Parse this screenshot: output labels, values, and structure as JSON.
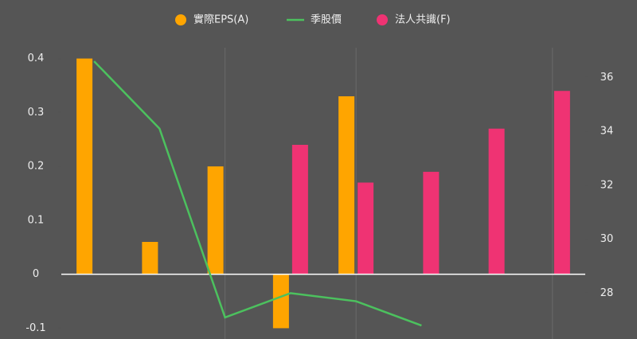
{
  "chart_data": {
    "type": "bar",
    "categories": [
      null,
      null,
      null,
      null,
      null,
      null,
      null,
      null
    ],
    "series": [
      {
        "name": "實際EPS(A)",
        "color": "#ffa500",
        "type": "bar",
        "values": [
          0.4,
          0.06,
          0.2,
          -0.1,
          0.33,
          null,
          null,
          null
        ]
      },
      {
        "name": "季股價",
        "color": "#4cc15e",
        "type": "line",
        "axis": "y2",
        "values": [
          36.6,
          34.1,
          27.1,
          28.0,
          27.7,
          26.8,
          null,
          null
        ]
      },
      {
        "name": "法人共識(F)",
        "color": "#ef3373",
        "type": "bar",
        "values": [
          null,
          null,
          null,
          0.24,
          0.17,
          0.19,
          0.27,
          0.34
        ]
      }
    ],
    "ylim": [
      -0.12,
      0.42
    ],
    "yticks": [
      -0.1,
      0,
      0.1,
      0.2,
      0.3,
      0.4
    ],
    "y2lim": [
      26.3,
      37.1
    ],
    "y2ticks": [
      28,
      30,
      32,
      34,
      36
    ]
  }
}
